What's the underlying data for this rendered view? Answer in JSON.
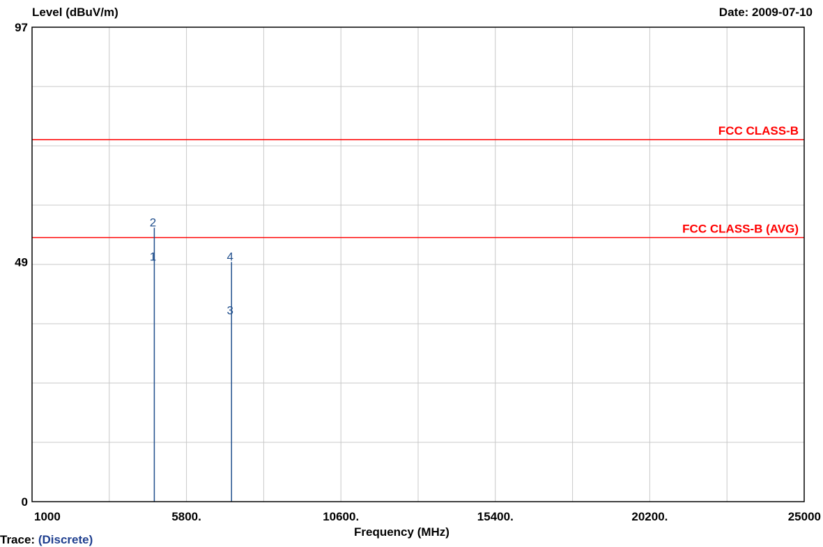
{
  "header": {
    "ylabel": "Level (dBuV/m)",
    "date": "Date: 2009-07-10"
  },
  "footer": {
    "xlabel": "Frequency (MHz)",
    "trace_label": "Trace:",
    "trace_value": "(Discrete)"
  },
  "colors": {
    "limit": "#ff0000",
    "marker": "#1f4e8c",
    "grid": "#c8c8c8",
    "frame": "#000000"
  },
  "chart_data": {
    "type": "line",
    "xlabel": "Frequency (MHz)",
    "ylabel": "Level (dBuV/m)",
    "xlim": [
      1000,
      25000
    ],
    "ylim": [
      0,
      97
    ],
    "x_tick_labels": [
      "1000",
      "5800.",
      "10600.",
      "15400.",
      "20200.",
      "25000"
    ],
    "x_tick_values": [
      1000,
      5800,
      10600,
      15400,
      20200,
      25000
    ],
    "y_tick_labels": [
      "0",
      "49",
      "97"
    ],
    "y_tick_values": [
      0,
      49,
      97
    ],
    "x_grid_divisions": 10,
    "y_grid_divisions": 8,
    "grid": true,
    "limit_lines": [
      {
        "name": "FCC CLASS-B",
        "y": 74
      },
      {
        "name": "FCC CLASS-B (AVG)",
        "y": 54
      }
    ],
    "markers": [
      {
        "label": "1",
        "x": 4800,
        "y": 49
      },
      {
        "label": "2",
        "x": 4800,
        "y": 56
      },
      {
        "label": "3",
        "x": 7200,
        "y": 38
      },
      {
        "label": "4",
        "x": 7200,
        "y": 49
      }
    ]
  }
}
